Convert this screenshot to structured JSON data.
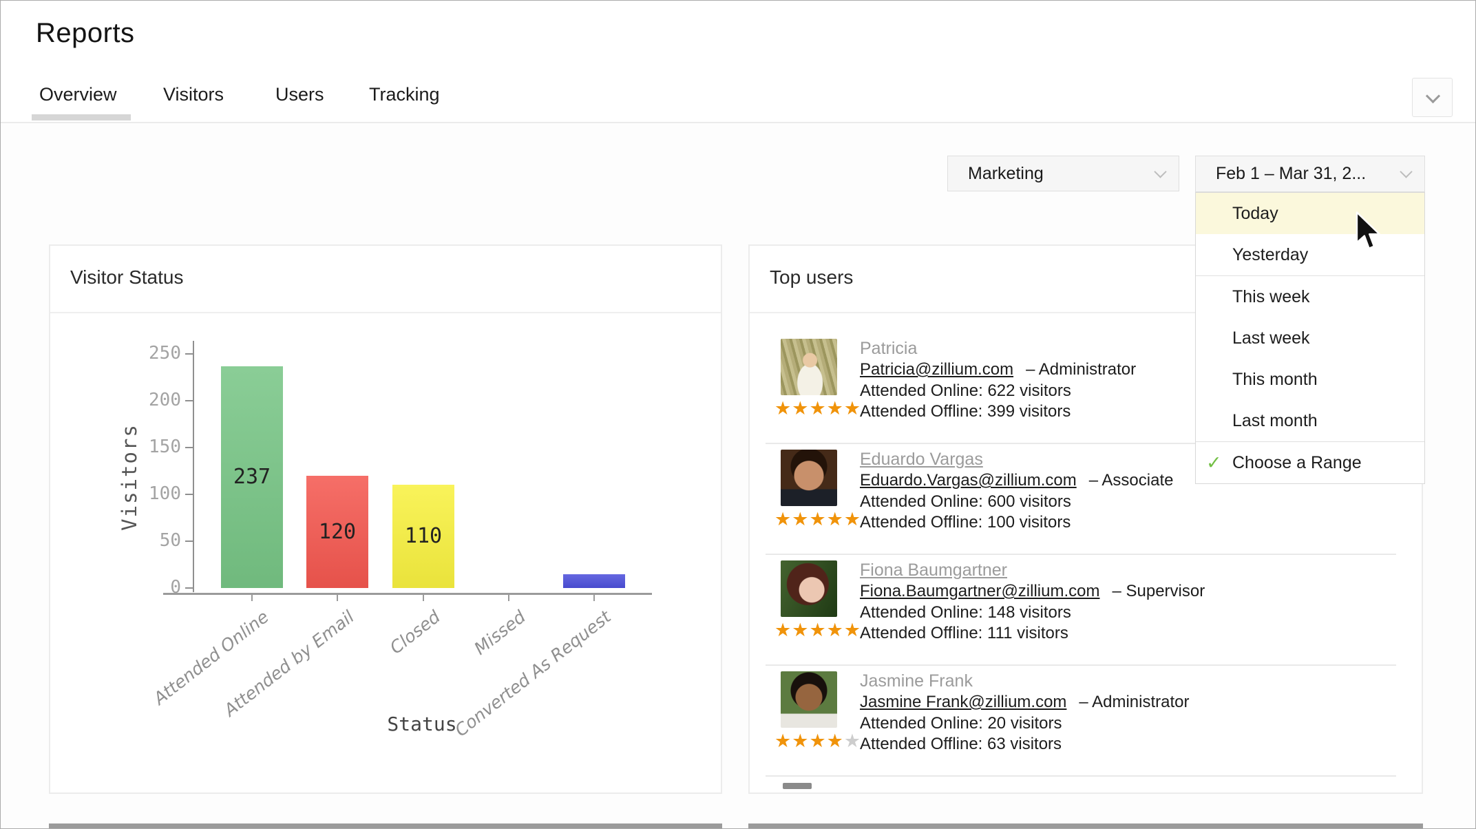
{
  "header": {
    "title": "Reports"
  },
  "tabs": [
    {
      "label": "Overview",
      "active": true
    },
    {
      "label": "Visitors",
      "active": false
    },
    {
      "label": "Users",
      "active": false
    },
    {
      "label": "Tracking",
      "active": false
    }
  ],
  "filters": {
    "department": {
      "value": "Marketing"
    },
    "date_range": {
      "value": "Feb 1 – Mar 31, 2..."
    },
    "date_menu_items": [
      {
        "label": "Today",
        "highlighted": true,
        "checked": false,
        "divider_after": false
      },
      {
        "label": "Yesterday",
        "highlighted": false,
        "checked": false,
        "divider_after": true
      },
      {
        "label": "This week",
        "highlighted": false,
        "checked": false,
        "divider_after": false
      },
      {
        "label": "Last week",
        "highlighted": false,
        "checked": false,
        "divider_after": false
      },
      {
        "label": "This month",
        "highlighted": false,
        "checked": false,
        "divider_after": false
      },
      {
        "label": "Last month",
        "highlighted": false,
        "checked": false,
        "divider_after": true
      },
      {
        "label": "Choose a Range",
        "highlighted": false,
        "checked": true,
        "divider_after": false
      }
    ]
  },
  "visitor_status_card": {
    "title": "Visitor Status"
  },
  "chart_data": {
    "type": "bar",
    "title": "Visitor Status",
    "categories": [
      "Attended Online",
      "Attended by Email",
      "Closed",
      "Missed",
      "Converted As Request"
    ],
    "values": [
      237,
      120,
      110,
      0,
      15
    ],
    "bar_labels": [
      "237",
      "120",
      "110",
      "",
      ""
    ],
    "colors": [
      "#77c585",
      "#f4574f",
      "#f8f13f",
      null,
      "#4c4fdb"
    ],
    "xlabel": "Status",
    "ylabel": "Visitors",
    "ylim": [
      0,
      250
    ],
    "yticks": [
      0,
      50,
      100,
      150,
      200,
      250
    ],
    "grid": false,
    "legend": "none"
  },
  "top_users_card": {
    "title": "Top users",
    "users": [
      {
        "name": "Patricia",
        "name_underlined": false,
        "email": "Patricia@zillium.com",
        "role": "– Administrator",
        "online": "Attended Online: 622 visitors",
        "offline": "Attended Offline: 399 visitors",
        "stars": 5,
        "avatar": "patricia"
      },
      {
        "name": "Eduardo Vargas",
        "name_underlined": true,
        "email": "Eduardo.Vargas@zillium.com",
        "role": "– Associate",
        "online": "Attended Online: 600 visitors",
        "offline": "Attended Offline: 100 visitors",
        "stars": 5,
        "avatar": "eduardo"
      },
      {
        "name": "Fiona Baumgartner",
        "name_underlined": true,
        "email": "Fiona.Baumgartner@zillium.com",
        "role": "– Supervisor",
        "online": "Attended Online: 148 visitors",
        "offline": "Attended Offline: 111 visitors",
        "stars": 5,
        "avatar": "fiona"
      },
      {
        "name": "Jasmine Frank",
        "name_underlined": false,
        "email": "Jasmine Frank@zillium.com",
        "role": "– Administrator",
        "online": "Attended Online: 20 visitors",
        "offline": "Attended Offline: 63 visitors",
        "stars": 4,
        "avatar": "jasmine"
      }
    ]
  },
  "colors": {
    "accent_star": "#f0930a",
    "menu_highlight": "#fbf8dc",
    "check_green": "#72bf44",
    "bar_green": "#77c585",
    "bar_red": "#f4574f",
    "bar_yellow": "#f8f13f",
    "bar_blue": "#4c4fdb"
  }
}
